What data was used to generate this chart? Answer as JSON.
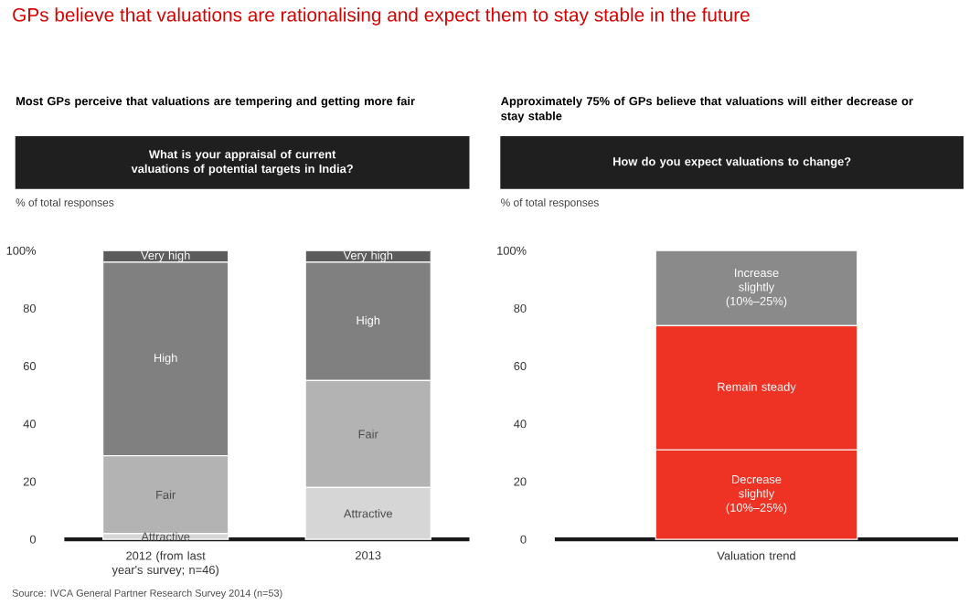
{
  "chart_data": [
    {
      "type": "bar",
      "stacked": true,
      "title": "Most GPs perceive that valuations are tempering and getting more fair",
      "subtitle": "What is your appraisal of current valuations of potential targets in India?",
      "ylabel": "% of total responses",
      "categories": [
        "2012 (from last year's survey; n=46)",
        "2013"
      ],
      "series": [
        {
          "name": "Attractive",
          "color": "#d6d6d6",
          "values": [
            2,
            18
          ]
        },
        {
          "name": "Fair",
          "color": "#b3b3b3",
          "values": [
            27,
            37
          ]
        },
        {
          "name": "High",
          "color": "#808080",
          "values": [
            67,
            41
          ]
        },
        {
          "name": "Very high",
          "color": "#5c5c5c",
          "values": [
            4,
            4
          ]
        }
      ],
      "ylim": [
        0,
        100
      ],
      "yticks": [
        0,
        20,
        40,
        60,
        80,
        {
          "value": 100,
          "label": "100%"
        }
      ],
      "annotations": [
        "GPs believe that valuations are rationalising and expect them to stay stable in the future",
        "Source: IVCA General Partner Research Survey 2014 (n=53)"
      ]
    },
    {
      "type": "bar",
      "stacked": true,
      "title": "Approximately 75% of GPs believe that valuations will either decrease or stay stable",
      "subtitle": "How do you expect valuations to change?",
      "ylabel": "% of total responses",
      "categories": [
        "Valuation trend"
      ],
      "series": [
        {
          "name": "Decrease slightly (10%–25%)",
          "color": "#ee3224",
          "values": [
            31
          ]
        },
        {
          "name": "Remain steady",
          "color": "#ee3224",
          "values": [
            43
          ]
        },
        {
          "name": "Increase slightly (10%–25%)",
          "color": "#8a8a8a",
          "values": [
            26
          ]
        }
      ],
      "ylim": [
        0,
        100
      ],
      "yticks": [
        0,
        20,
        40,
        60,
        80,
        {
          "value": 100,
          "label": "100%"
        }
      ]
    }
  ]
}
